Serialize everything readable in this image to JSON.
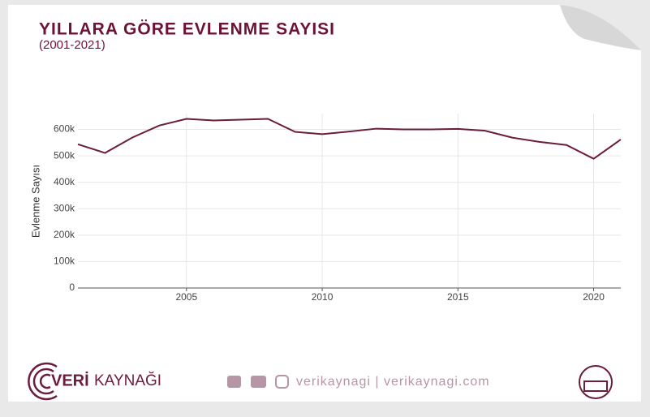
{
  "chart_data": {
    "type": "line",
    "title": "YILLARA GÖRE EVLENME SAYISI",
    "subtitle": "(2001-2021)",
    "y_label": "Evlenme Sayısı",
    "x": [
      2001,
      2002,
      2003,
      2004,
      2005,
      2006,
      2007,
      2008,
      2009,
      2010,
      2011,
      2012,
      2013,
      2014,
      2015,
      2016,
      2017,
      2018,
      2019,
      2020,
      2021
    ],
    "values": [
      544000,
      511000,
      569000,
      615000,
      640000,
      634000,
      637000,
      640000,
      591000,
      582000,
      592000,
      603000,
      600000,
      600000,
      602000,
      595000,
      569000,
      553000,
      541000,
      489000,
      562000
    ],
    "color": "#6b1d3e",
    "xlim": [
      2001,
      2021
    ],
    "xticks": [
      2005,
      2010,
      2015,
      2020
    ],
    "ylim": [
      0,
      660000
    ],
    "yticks": [
      0,
      {
        "value": 100000,
        "label": "100k"
      },
      {
        "value": 200000,
        "label": "200k"
      },
      {
        "value": 300000,
        "label": "300k"
      },
      {
        "value": 400000,
        "label": "400k"
      },
      {
        "value": 500000,
        "label": "500k"
      },
      {
        "value": 600000,
        "label": "600k"
      }
    ],
    "grid": true
  },
  "footer": {
    "brand_prefix": "VERİ",
    "brand_suffix": "KAYNAĞI",
    "links": "verikaynagi | verikaynagi.com"
  }
}
